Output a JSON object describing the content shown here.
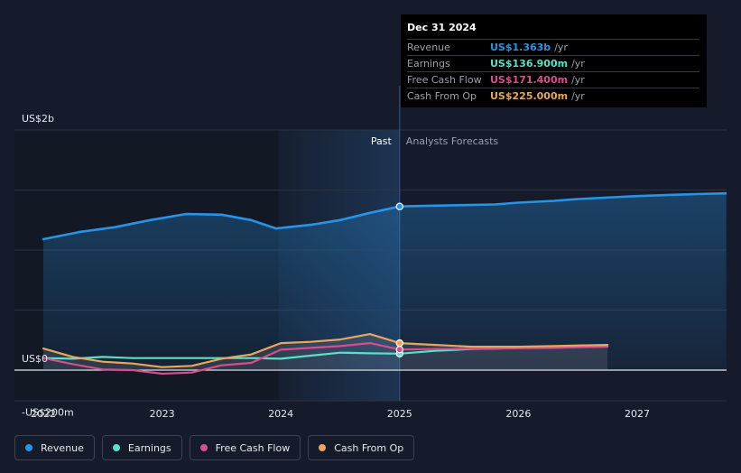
{
  "chart_data": {
    "type": "line",
    "y_unit": "US$",
    "ylim": [
      -200,
      2000
    ],
    "y_tick_labels": [
      "US$2b",
      "US$0",
      "-US$200m"
    ],
    "x_tick_labels": [
      "2022",
      "2023",
      "2024",
      "2025",
      "2026",
      "2027"
    ],
    "region_labels": {
      "past": "Past",
      "forecast": "Analysts Forecasts"
    },
    "divider_year": 2025.0,
    "series": [
      {
        "name": "Revenue",
        "color": "#2894e6",
        "fill": true,
        "x": [
          2022.0,
          2022.3,
          2022.6,
          2022.9,
          2023.2,
          2023.5,
          2023.75,
          2023.96,
          2024.25,
          2024.5,
          2024.75,
          2025.0,
          2025.3,
          2025.6,
          2025.8,
          2026.0,
          2026.3,
          2026.5,
          2026.8,
          2027.0,
          2027.3,
          2027.5,
          2027.75
        ],
        "y": [
          1090,
          1150,
          1190,
          1250,
          1300,
          1295,
          1250,
          1180,
          1210,
          1250,
          1310,
          1363,
          1370,
          1375,
          1380,
          1395,
          1410,
          1425,
          1440,
          1450,
          1460,
          1466,
          1472
        ]
      },
      {
        "name": "Earnings",
        "color": "#5ce0c8",
        "fill": false,
        "x": [
          2022.0,
          2022.25,
          2022.5,
          2022.75,
          2023.0,
          2023.25,
          2023.5,
          2023.75,
          2024.0,
          2024.25,
          2024.5,
          2024.75,
          2025.0,
          2025.3,
          2025.6,
          2025.8,
          2026.0,
          2026.3,
          2026.5,
          2026.75
        ],
        "y": [
          100,
          95,
          110,
          100,
          100,
          100,
          100,
          100,
          95,
          120,
          145,
          140,
          136.9,
          160,
          175,
          180,
          185,
          190,
          195,
          200
        ]
      },
      {
        "name": "Free Cash Flow",
        "color": "#d64f8c",
        "fill": false,
        "x": [
          2022.0,
          2022.25,
          2022.5,
          2022.75,
          2023.0,
          2023.25,
          2023.5,
          2023.75,
          2024.0,
          2024.25,
          2024.5,
          2024.75,
          2025.0,
          2025.3,
          2025.6,
          2025.8,
          2026.0,
          2026.3,
          2026.5,
          2026.75
        ],
        "y": [
          100,
          50,
          5,
          0,
          -30,
          -20,
          40,
          60,
          170,
          185,
          200,
          225,
          171.4,
          175,
          178,
          180,
          182,
          185,
          190,
          195
        ]
      },
      {
        "name": "Cash From Op",
        "color": "#e8a75c",
        "fill": false,
        "x": [
          2022.0,
          2022.25,
          2022.5,
          2022.75,
          2023.0,
          2023.25,
          2023.5,
          2023.75,
          2024.0,
          2024.25,
          2024.5,
          2024.75,
          2025.0,
          2025.3,
          2025.6,
          2025.8,
          2026.0,
          2026.3,
          2026.5,
          2026.75
        ],
        "y": [
          180,
          110,
          70,
          55,
          25,
          35,
          95,
          130,
          225,
          235,
          255,
          300,
          225,
          210,
          195,
          195,
          195,
          200,
          205,
          210
        ]
      }
    ],
    "tooltip": {
      "date": "Dec 31 2024",
      "rows": [
        {
          "name": "Revenue",
          "value": "US$1.363b",
          "unit": "/yr",
          "color": "#2894e6"
        },
        {
          "name": "Earnings",
          "value": "US$136.900m",
          "unit": "/yr",
          "color": "#5ce0c8"
        },
        {
          "name": "Free Cash Flow",
          "value": "US$171.400m",
          "unit": "/yr",
          "color": "#d64f8c"
        },
        {
          "name": "Cash From Op",
          "value": "US$225.000m",
          "unit": "/yr",
          "color": "#e8a75c"
        }
      ]
    },
    "legend": [
      {
        "label": "Revenue",
        "color": "#2894e6"
      },
      {
        "label": "Earnings",
        "color": "#5ce0c8"
      },
      {
        "label": "Free Cash Flow",
        "color": "#d64f8c"
      },
      {
        "label": "Cash From Op",
        "color": "#e8a75c"
      }
    ]
  }
}
